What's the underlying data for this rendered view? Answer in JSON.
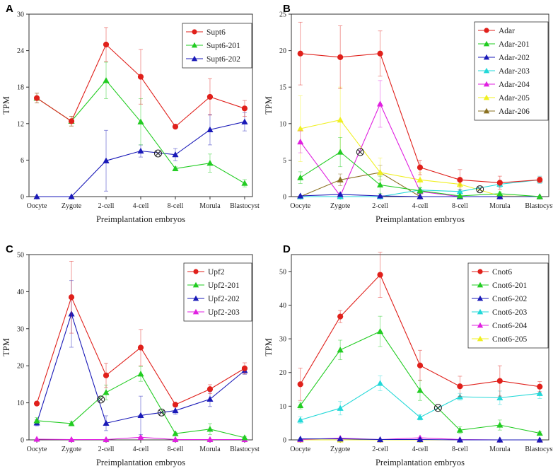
{
  "figure": {
    "note": "Four-panel TPM line charts for preimplantation embryos"
  },
  "chart_data": [
    {
      "type": "line",
      "panel": "A",
      "xlabel": "Preimplantation embryos",
      "ylabel": "TPM",
      "categories": [
        "Oocyte",
        "Zygote",
        "2-cell",
        "4-cell",
        "8-cell",
        "Morula",
        "Blastocyst"
      ],
      "ylim": [
        0,
        30
      ],
      "yticks": [
        0,
        6,
        12,
        18,
        24,
        30
      ],
      "series": [
        {
          "name": "Supt6",
          "color": "#e0201b",
          "marker": "circle",
          "values": [
            16.2,
            12.4,
            25.0,
            19.7,
            11.5,
            16.4,
            14.5
          ],
          "errors": [
            0.8,
            0.8,
            2.8,
            4.5,
            0.3,
            3.0,
            1.3
          ]
        },
        {
          "name": "Supt6-201",
          "color": "#22cc22",
          "marker": "triangle",
          "values": [
            16.2,
            12.4,
            19.1,
            12.3,
            4.6,
            5.5,
            2.2
          ],
          "errors": [
            0.8,
            0.8,
            3.0,
            3.8,
            0.3,
            1.5,
            0.6
          ]
        },
        {
          "name": "Supt6-202",
          "color": "#1a1ab8",
          "marker": "triangle",
          "values": [
            0.0,
            0.0,
            5.9,
            7.5,
            6.9,
            11.0,
            12.3
          ],
          "errors": [
            0,
            0,
            5.0,
            1.0,
            1.0,
            2.5,
            1.5
          ]
        }
      ],
      "crossing_marker": {
        "category_index": 3.5,
        "value": 7.1
      }
    },
    {
      "type": "line",
      "panel": "B",
      "xlabel": "Preimplantation embryos",
      "ylabel": "TPM",
      "categories": [
        "Oocyte",
        "Zygote",
        "2-cell",
        "4-cell",
        "8-cell",
        "Morula",
        "Blastocyst"
      ],
      "ylim": [
        0,
        25
      ],
      "yticks": [
        0,
        5,
        10,
        15,
        20,
        25
      ],
      "series": [
        {
          "name": "Adar",
          "color": "#e0201b",
          "marker": "circle",
          "values": [
            19.6,
            19.1,
            19.6,
            4.0,
            2.3,
            1.9,
            2.3
          ],
          "errors": [
            4.3,
            4.3,
            3.1,
            1.0,
            1.4,
            0.9,
            0.4
          ]
        },
        {
          "name": "Adar-201",
          "color": "#22cc22",
          "marker": "triangle",
          "values": [
            2.6,
            6.1,
            1.6,
            0.8,
            0.1,
            0.4,
            0.0
          ],
          "errors": [
            0.8,
            2.0,
            1.2,
            0.4,
            0.1,
            0.2,
            0
          ]
        },
        {
          "name": "Adar-202",
          "color": "#1a1ab8",
          "marker": "triangle",
          "values": [
            0.1,
            0.3,
            0.1,
            0.0,
            0.0,
            0.0,
            0.0
          ],
          "errors": [
            0,
            0,
            0,
            0,
            0,
            0,
            0
          ]
        },
        {
          "name": "Adar-203",
          "color": "#22d8d8",
          "marker": "triangle",
          "values": [
            0.0,
            0.0,
            0.0,
            0.9,
            0.7,
            1.7,
            2.3
          ],
          "errors": [
            0,
            0,
            0,
            0.3,
            0.3,
            0.5,
            0.5
          ]
        },
        {
          "name": "Adar-204",
          "color": "#e020e0",
          "marker": "triangle",
          "values": [
            7.5,
            0.1,
            12.7,
            0.7,
            0.0,
            0.0,
            0.0
          ],
          "errors": [
            1.5,
            0,
            3.2,
            0.3,
            0,
            0,
            0
          ]
        },
        {
          "name": "Adar-205",
          "color": "#f0f020",
          "marker": "triangle",
          "values": [
            9.3,
            10.5,
            3.3,
            2.3,
            1.7,
            0.1,
            0.0
          ],
          "errors": [
            4.5,
            4.5,
            2.0,
            1.0,
            0.5,
            0.1,
            0
          ]
        },
        {
          "name": "Adar-206",
          "color": "#8a7020",
          "marker": "triangle",
          "values": [
            0.0,
            2.3,
            3.3,
            0.0,
            0.0,
            0.0,
            0.0
          ],
          "errors": [
            0,
            0.8,
            1.0,
            0,
            0,
            0,
            0
          ]
        }
      ],
      "crossing_marker": [
        {
          "category_index": 1.5,
          "value": 6.1
        },
        {
          "category_index": 4.5,
          "value": 1.0
        }
      ]
    },
    {
      "type": "line",
      "panel": "C",
      "xlabel": "Preimplantation embryos",
      "ylabel": "TPM",
      "categories": [
        "Oocyte",
        "Zygote",
        "2-cell",
        "4-cell",
        "8-cell",
        "Morula",
        "Blastocyst"
      ],
      "ylim": [
        0,
        50
      ],
      "yticks": [
        0,
        10,
        20,
        30,
        40,
        50
      ],
      "series": [
        {
          "name": "Upf2",
          "color": "#e0201b",
          "marker": "circle",
          "values": [
            9.8,
            38.5,
            17.4,
            24.9,
            9.5,
            13.7,
            19.3
          ],
          "errors": [
            0.5,
            9.7,
            3.3,
            4.9,
            0.5,
            1.2,
            1.5
          ]
        },
        {
          "name": "Upf2-201",
          "color": "#22cc22",
          "marker": "triangle",
          "values": [
            5.2,
            4.4,
            12.8,
            17.8,
            1.7,
            2.9,
            0.6
          ],
          "errors": [
            0.8,
            0.6,
            2.0,
            2.0,
            0.4,
            1.5,
            0.3
          ]
        },
        {
          "name": "Upf2-202",
          "color": "#1a1ab8",
          "marker": "triangle",
          "values": [
            4.6,
            34.0,
            4.5,
            6.6,
            7.9,
            11.0,
            18.7
          ],
          "errors": [
            0.8,
            9.0,
            2.0,
            5.2,
            1.0,
            2.0,
            1.0
          ]
        },
        {
          "name": "Upf2-203",
          "color": "#e020e0",
          "marker": "triangle",
          "values": [
            0.2,
            0.1,
            0.1,
            0.7,
            0.1,
            0.1,
            0.1
          ],
          "errors": [
            0,
            0,
            0,
            0.3,
            0,
            0,
            0
          ]
        }
      ],
      "crossing_marker": [
        {
          "category_index": 1.85,
          "value": 10.9
        },
        {
          "category_index": 3.6,
          "value": 7.4
        }
      ]
    },
    {
      "type": "line",
      "panel": "D",
      "xlabel": "Preimplantation embryos",
      "ylabel": "TPM",
      "categories": [
        "Oocyte",
        "Zygote",
        "2-cell",
        "4-cell",
        "8-cell",
        "Morula",
        "Blastocyst"
      ],
      "ylim": [
        0,
        55
      ],
      "yticks": [
        0,
        10,
        20,
        30,
        40,
        50
      ],
      "series": [
        {
          "name": "Cnot6",
          "color": "#e0201b",
          "marker": "circle",
          "values": [
            16.5,
            36.6,
            49.0,
            22.1,
            15.9,
            17.5,
            15.8
          ],
          "errors": [
            4.8,
            1.8,
            6.7,
            4.5,
            3.0,
            4.5,
            1.5
          ]
        },
        {
          "name": "Cnot6-201",
          "color": "#22cc22",
          "marker": "triangle",
          "values": [
            10.2,
            26.7,
            32.2,
            14.7,
            2.9,
            4.4,
            2.0
          ],
          "errors": [
            1.0,
            2.9,
            4.5,
            3.0,
            1.0,
            1.5,
            0.4
          ]
        },
        {
          "name": "Cnot6-202",
          "color": "#1a1ab8",
          "marker": "triangle",
          "values": [
            0.3,
            0.3,
            0.1,
            0.1,
            0.0,
            0.0,
            0.0
          ],
          "errors": [
            0,
            0,
            0,
            0,
            0,
            0,
            0
          ]
        },
        {
          "name": "Cnot6-203",
          "color": "#22d8d8",
          "marker": "triangle",
          "values": [
            5.9,
            9.4,
            16.8,
            6.7,
            12.8,
            12.5,
            13.8
          ],
          "errors": [
            1.0,
            2.0,
            2.2,
            0.8,
            1.0,
            2.0,
            1.5
          ]
        },
        {
          "name": "Cnot6-204",
          "color": "#e020e0",
          "marker": "triangle",
          "values": [
            0.1,
            0.5,
            0.1,
            0.6,
            0.1,
            0.0,
            0.0
          ],
          "errors": [
            0,
            0,
            0,
            0,
            0,
            0,
            0
          ]
        },
        {
          "name": "Cnot6-205",
          "color": "#f0f020",
          "marker": "triangle",
          "values": [
            0.0,
            0.0,
            0.0,
            0.0,
            0.0,
            0.0,
            0.0
          ],
          "errors": [
            0,
            0,
            0,
            0,
            0,
            0,
            0
          ]
        }
      ],
      "crossing_marker": [
        {
          "category_index": 3.45,
          "value": 9.5
        }
      ]
    }
  ]
}
